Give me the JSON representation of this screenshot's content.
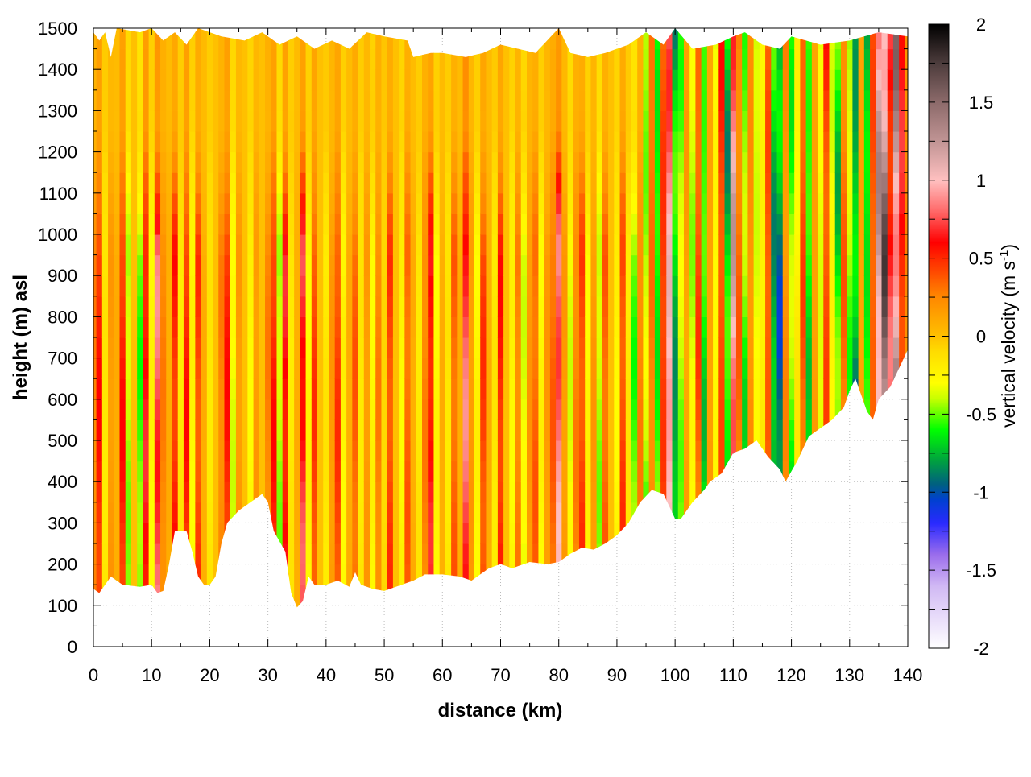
{
  "chart_data": {
    "type": "heatmap",
    "xlabel": "distance (km)",
    "ylabel": "height (m) asl",
    "colorbar_label": "vertical velocity (m s",
    "colorbar_label_sup": "-1",
    "colorbar_label_end": ")",
    "xlim": [
      0,
      140
    ],
    "ylim": [
      0,
      1500
    ],
    "clim": [
      -2,
      2
    ],
    "x_ticks": [
      "0",
      "10",
      "20",
      "30",
      "40",
      "50",
      "60",
      "70",
      "80",
      "90",
      "100",
      "110",
      "120",
      "130",
      "140"
    ],
    "y_ticks": [
      "0",
      "100",
      "200",
      "300",
      "400",
      "500",
      "600",
      "700",
      "800",
      "900",
      "1000",
      "1100",
      "1200",
      "1300",
      "1400",
      "1500"
    ],
    "c_ticks": [
      "-2",
      "-1.5",
      "-1",
      "-0.5",
      "0",
      "0.5",
      "1",
      "1.5",
      "2"
    ],
    "grid": true,
    "colormap": [
      [
        -2,
        "#ffffff"
      ],
      [
        -1.6,
        "#d0b8f4"
      ],
      [
        -1.4,
        "#9a6cec"
      ],
      [
        -1.2,
        "#2a2aff"
      ],
      [
        -1.05,
        "#0040d0"
      ],
      [
        -0.95,
        "#006080"
      ],
      [
        -0.8,
        "#00a040"
      ],
      [
        -0.6,
        "#00ff00"
      ],
      [
        -0.4,
        "#c8ff00"
      ],
      [
        -0.3,
        "#ffff00"
      ],
      [
        -0.1,
        "#ffdc00"
      ],
      [
        0,
        "#ffc000"
      ],
      [
        0.25,
        "#ff8800"
      ],
      [
        0.5,
        "#ff2800"
      ],
      [
        0.6,
        "#ff0000"
      ],
      [
        0.8,
        "#ff6868"
      ],
      [
        1,
        "#ffc0c0"
      ],
      [
        1.25,
        "#c09494"
      ],
      [
        1.5,
        "#8c6a6a"
      ],
      [
        1.75,
        "#4c3c3c"
      ],
      [
        2,
        "#000000"
      ]
    ],
    "ground_height_m": [
      [
        0,
        140
      ],
      [
        1,
        130
      ],
      [
        2,
        150
      ],
      [
        3,
        170
      ],
      [
        5,
        150
      ],
      [
        8,
        145
      ],
      [
        10,
        150
      ],
      [
        11,
        130
      ],
      [
        12,
        135
      ],
      [
        13,
        200
      ],
      [
        14,
        280
      ],
      [
        16,
        280
      ],
      [
        17,
        230
      ],
      [
        18,
        170
      ],
      [
        19,
        150
      ],
      [
        20,
        150
      ],
      [
        21,
        170
      ],
      [
        22,
        250
      ],
      [
        23,
        300
      ],
      [
        25,
        330
      ],
      [
        28,
        360
      ],
      [
        29,
        370
      ],
      [
        30,
        350
      ],
      [
        31,
        280
      ],
      [
        33,
        230
      ],
      [
        34,
        130
      ],
      [
        35,
        95
      ],
      [
        36,
        110
      ],
      [
        37,
        170
      ],
      [
        38,
        150
      ],
      [
        40,
        150
      ],
      [
        42,
        160
      ],
      [
        44,
        145
      ],
      [
        45,
        180
      ],
      [
        46,
        150
      ],
      [
        48,
        140
      ],
      [
        50,
        135
      ],
      [
        52,
        145
      ],
      [
        55,
        160
      ],
      [
        57,
        175
      ],
      [
        60,
        175
      ],
      [
        63,
        170
      ],
      [
        65,
        160
      ],
      [
        68,
        190
      ],
      [
        70,
        200
      ],
      [
        72,
        190
      ],
      [
        75,
        205
      ],
      [
        78,
        200
      ],
      [
        80,
        205
      ],
      [
        82,
        225
      ],
      [
        84,
        240
      ],
      [
        86,
        235
      ],
      [
        88,
        250
      ],
      [
        90,
        270
      ],
      [
        92,
        300
      ],
      [
        94,
        350
      ],
      [
        96,
        380
      ],
      [
        98,
        370
      ],
      [
        100,
        310
      ],
      [
        101,
        310
      ],
      [
        103,
        350
      ],
      [
        105,
        380
      ],
      [
        106,
        400
      ],
      [
        108,
        420
      ],
      [
        110,
        470
      ],
      [
        112,
        480
      ],
      [
        114,
        500
      ],
      [
        116,
        460
      ],
      [
        118,
        430
      ],
      [
        119,
        400
      ],
      [
        121,
        450
      ],
      [
        123,
        510
      ],
      [
        125,
        530
      ],
      [
        127,
        550
      ],
      [
        129,
        580
      ],
      [
        130,
        620
      ],
      [
        131,
        650
      ],
      [
        132,
        610
      ],
      [
        133,
        570
      ],
      [
        134,
        550
      ],
      [
        135,
        600
      ],
      [
        137,
        630
      ],
      [
        139,
        690
      ],
      [
        140,
        720
      ]
    ],
    "top_height_m": [
      [
        0,
        1490
      ],
      [
        1,
        1470
      ],
      [
        2,
        1490
      ],
      [
        3,
        1430
      ],
      [
        4,
        1500
      ],
      [
        8,
        1490
      ],
      [
        10,
        1500
      ],
      [
        12,
        1470
      ],
      [
        14,
        1490
      ],
      [
        16,
        1460
      ],
      [
        18,
        1500
      ],
      [
        22,
        1480
      ],
      [
        26,
        1470
      ],
      [
        29,
        1490
      ],
      [
        32,
        1460
      ],
      [
        35,
        1480
      ],
      [
        38,
        1450
      ],
      [
        41,
        1470
      ],
      [
        44,
        1450
      ],
      [
        47,
        1490
      ],
      [
        50,
        1480
      ],
      [
        54,
        1470
      ],
      [
        55,
        1430
      ],
      [
        58,
        1440
      ],
      [
        60,
        1440
      ],
      [
        64,
        1430
      ],
      [
        67,
        1440
      ],
      [
        70,
        1460
      ],
      [
        73,
        1450
      ],
      [
        76,
        1440
      ],
      [
        80,
        1500
      ],
      [
        82,
        1440
      ],
      [
        85,
        1430
      ],
      [
        88,
        1440
      ],
      [
        92,
        1460
      ],
      [
        95,
        1490
      ],
      [
        98,
        1460
      ],
      [
        100,
        1500
      ],
      [
        103,
        1450
      ],
      [
        107,
        1460
      ],
      [
        110,
        1480
      ],
      [
        112,
        1490
      ],
      [
        115,
        1460
      ],
      [
        118,
        1450
      ],
      [
        120,
        1480
      ],
      [
        125,
        1460
      ],
      [
        130,
        1470
      ],
      [
        135,
        1490
      ],
      [
        140,
        1480
      ]
    ],
    "column_velocity_m_s": [
      0.3,
      0.6,
      -0.2,
      0.2,
      0.1,
      0.6,
      -0.5,
      0,
      -0.6,
      0.7,
      -0.3,
      0.9,
      0.3,
      0.1,
      0.6,
      -0.2,
      0.6,
      -0.3,
      0.5,
      0.1,
      -0.2,
      0,
      0.3,
      0.6,
      -0.4,
      0.2,
      0,
      -0.3,
      0.2,
      0,
      0.3,
      0.6,
      -0.5,
      0.7,
      -0.2,
      0.1,
      0.8,
      -0.3,
      0.5,
      0,
      -0.2,
      0.2,
      0.5,
      -0.3,
      0.1,
      0.4,
      -0.2,
      0.2,
      -0.3,
      0.3,
      -0.1,
      0.5,
      0,
      -0.3,
      0.4,
      0.1,
      -0.2,
      0.3,
      0.7,
      -0.3,
      0.1,
      -0.2,
      0.4,
      0.1,
      0.9,
      0.2,
      -0.3,
      0.5,
      0.1,
      -0.2,
      0.6,
      0,
      -0.3,
      0.3,
      -0.4,
      0.2,
      0.4,
      -0.3,
      0.2,
      0.4,
      1.0,
      0.2,
      -0.4,
      0.3,
      0.5,
      -0.3,
      0.2,
      -0.5,
      0.4,
      0,
      -0.3,
      0.5,
      -0.2,
      -0.6,
      0.3,
      -0.6,
      0.4,
      -0.8,
      0.6,
      1.3,
      -1.0,
      -0.6,
      0.2,
      -0.5,
      0.5,
      -0.8,
      0.2,
      -0.4,
      0.6,
      -0.9,
      1.3,
      0.4,
      -0.7,
      0.3,
      -0.5,
      -0.3,
      0.5,
      -1.0,
      -1.2,
      0.3,
      -0.7,
      -0.3,
      0.5,
      -0.8,
      0.2,
      -0.5,
      0.6,
      -0.4,
      -0.8,
      0.4,
      -0.6,
      -1.1,
      0.2,
      -0.9,
      0.5,
      1.5,
      1.9,
      0.9,
      1.7,
      0.8,
      0.3
    ]
  }
}
